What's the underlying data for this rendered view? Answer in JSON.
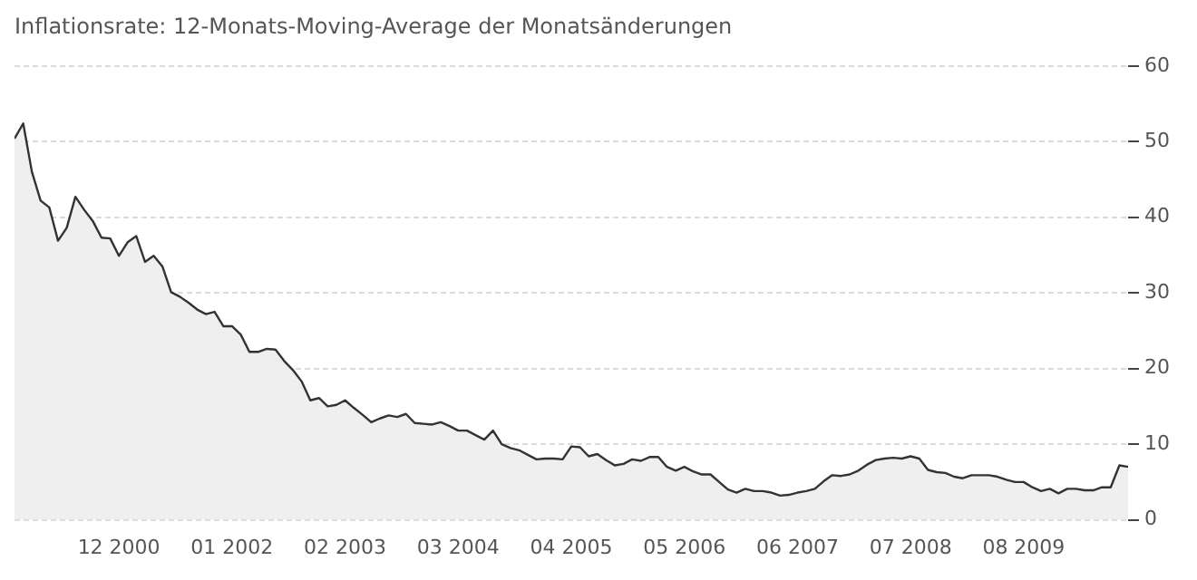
{
  "chart_data": {
    "type": "area",
    "title": "Inflationsrate: 12-Monats-Moving-Average der Monatsänderungen",
    "x": [
      "1999-12",
      "2000-01",
      "2000-02",
      "2000-03",
      "2000-04",
      "2000-05",
      "2000-06",
      "2000-07",
      "2000-08",
      "2000-09",
      "2000-10",
      "2000-11",
      "2000-12",
      "2001-01",
      "2001-02",
      "2001-03",
      "2001-04",
      "2001-05",
      "2001-06",
      "2001-07",
      "2001-08",
      "2001-09",
      "2001-10",
      "2001-11",
      "2001-12",
      "2002-01",
      "2002-02",
      "2002-03",
      "2002-04",
      "2002-05",
      "2002-06",
      "2002-07",
      "2002-08",
      "2002-09",
      "2002-10",
      "2002-11",
      "2002-12",
      "2003-01",
      "2003-02",
      "2003-03",
      "2003-04",
      "2003-05",
      "2003-06",
      "2003-07",
      "2003-08",
      "2003-09",
      "2003-10",
      "2003-11",
      "2003-12",
      "2004-01",
      "2004-02",
      "2004-03",
      "2004-04",
      "2004-05",
      "2004-06",
      "2004-07",
      "2004-08",
      "2004-09",
      "2004-10",
      "2004-11",
      "2004-12",
      "2005-01",
      "2005-02",
      "2005-03",
      "2005-04",
      "2005-05",
      "2005-06",
      "2005-07",
      "2005-08",
      "2005-09",
      "2005-10",
      "2005-11",
      "2005-12",
      "2006-01",
      "2006-02",
      "2006-03",
      "2006-04",
      "2006-05",
      "2006-06",
      "2006-07",
      "2006-08",
      "2006-09",
      "2006-10",
      "2006-11",
      "2006-12",
      "2007-01",
      "2007-02",
      "2007-03",
      "2007-04",
      "2007-05",
      "2007-06",
      "2007-07",
      "2007-08",
      "2007-09",
      "2007-10",
      "2007-11",
      "2007-12",
      "2008-01",
      "2008-02",
      "2008-03",
      "2008-04",
      "2008-05",
      "2008-06",
      "2008-07",
      "2008-08",
      "2008-09",
      "2008-10",
      "2008-11",
      "2008-12",
      "2009-01",
      "2009-02",
      "2009-03",
      "2009-04",
      "2009-05",
      "2009-06",
      "2009-07",
      "2009-08",
      "2009-09",
      "2009-10",
      "2009-11",
      "2009-12",
      "2010-01",
      "2010-02",
      "2010-03",
      "2010-04",
      "2010-05",
      "2010-06",
      "2010-07",
      "2010-08"
    ],
    "series": [
      {
        "color": "#333333",
        "values": [
          50.4,
          52.4,
          46,
          42.2,
          41.3,
          36.9,
          38.6,
          42.7,
          41,
          39.5,
          37.3,
          37.2,
          34.9,
          36.7,
          37.5,
          34.1,
          34.9,
          33.5,
          30.1,
          29.5,
          28.7,
          27.8,
          27.2,
          27.5,
          25.6,
          25.6,
          24.5,
          22.2,
          22.2,
          22.6,
          22.5,
          21,
          19.8,
          18.3,
          15.8,
          16.1,
          15,
          15.2,
          15.8,
          14.8,
          13.9,
          12.9,
          13.4,
          13.8,
          13.6,
          14,
          12.8,
          12.7,
          12.6,
          12.9,
          12.4,
          11.8,
          11.8,
          11.2,
          10.6,
          11.8,
          10,
          9.5,
          9.2,
          8.6,
          8,
          8.1,
          8.1,
          8,
          9.7,
          9.6,
          8.4,
          8.7,
          7.9,
          7.2,
          7.4,
          8,
          7.8,
          8.3,
          8.3,
          7,
          6.5,
          7,
          6.4,
          6,
          6,
          5,
          4,
          3.6,
          4.1,
          3.8,
          3.8,
          3.6,
          3.2,
          3.3,
          3.6,
          3.8,
          4.1,
          5.1,
          5.9,
          5.8,
          6,
          6.5,
          7.3,
          7.9,
          8.1,
          8.2,
          8.1,
          8.4,
          8.1,
          6.6,
          6.3,
          6.2,
          5.7,
          5.5,
          5.9,
          5.9,
          5.9,
          5.7,
          5.3,
          5,
          5,
          4.3,
          3.8,
          4.1,
          3.5,
          4.1,
          4.1,
          3.9,
          3.9,
          4.3,
          4.3,
          7.2,
          7
        ]
      }
    ],
    "xlim": [
      "1999-12",
      "2010-08"
    ],
    "xticks": [
      {
        "value": "2000-12",
        "label": "12 2000"
      },
      {
        "value": "2002-01",
        "label": "01 2002"
      },
      {
        "value": "2003-02",
        "label": "02 2003"
      },
      {
        "value": "2004-03",
        "label": "03 2004"
      },
      {
        "value": "2005-04",
        "label": "04 2005"
      },
      {
        "value": "2006-05",
        "label": "05 2006"
      },
      {
        "value": "2007-06",
        "label": "06 2007"
      },
      {
        "value": "2008-07",
        "label": "07 2008"
      },
      {
        "value": "2009-08",
        "label": "08 2009"
      }
    ],
    "ylim": [
      0,
      60
    ],
    "yticks": [
      0,
      10,
      20,
      30,
      40,
      50,
      60
    ],
    "grid": "y",
    "legend": false
  }
}
